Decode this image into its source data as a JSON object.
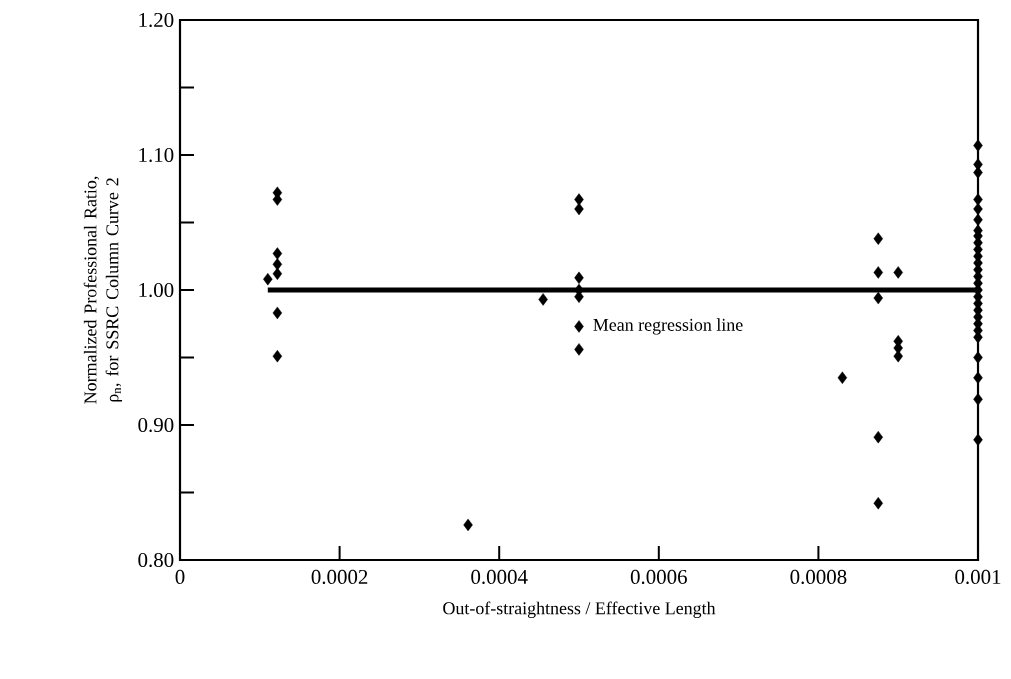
{
  "chart_data": {
    "type": "scatter",
    "xlabel": "Out-of-straightness / Effective Length",
    "ylabel": "Normalized Professional Ratio, ρ$_{n}$, for SSRC Column Curve 2",
    "xlim": [
      0,
      0.001
    ],
    "ylim": [
      0.8,
      1.2
    ],
    "xticks": [
      0,
      0.0002,
      0.0004,
      0.0006,
      0.0008,
      0.001
    ],
    "yticks": [
      {
        "value": 0.8,
        "label": "0.80"
      },
      {
        "value": 0.85,
        "label": null
      },
      {
        "value": 0.9,
        "label": "0.90"
      },
      {
        "value": 0.95,
        "label": null
      },
      {
        "value": 1.0,
        "label": "1.00"
      },
      {
        "value": 1.05,
        "label": null
      },
      {
        "value": 1.1,
        "label": "1.10"
      },
      {
        "value": 1.15,
        "label": null
      },
      {
        "value": 1.2,
        "label": "1.20"
      }
    ],
    "series": [
      {
        "type": "scatter",
        "color": "#000000",
        "marker": "diamond",
        "x": [
          0.00011,
          0.000122,
          0.000122,
          0.000122,
          0.000122,
          0.000122,
          0.000122,
          0.000122,
          0.000361,
          0.000455,
          0.0005,
          0.0005,
          0.0005,
          0.0005,
          0.0005,
          0.0005,
          0.0005,
          0.00083,
          0.000875,
          0.000875,
          0.000875,
          0.000875,
          0.000875,
          0.0009,
          0.0009,
          0.0009,
          0.0009,
          0.001,
          0.001,
          0.001,
          0.001,
          0.001,
          0.001,
          0.001,
          0.001,
          0.001,
          0.001,
          0.001,
          0.001,
          0.001,
          0.001,
          0.001,
          0.001,
          0.001,
          0.001,
          0.001,
          0.001,
          0.001,
          0.001,
          0.001,
          0.001,
          0.001,
          0.001,
          0.001
        ],
        "values": [
          1.008,
          1.072,
          1.067,
          1.027,
          1.019,
          1.012,
          0.983,
          0.951,
          0.826,
          0.993,
          1.067,
          1.06,
          1.009,
          1.0,
          0.995,
          0.973,
          0.956,
          0.935,
          1.038,
          1.013,
          0.994,
          0.891,
          0.842,
          1.013,
          0.962,
          0.957,
          0.951,
          1.107,
          1.093,
          1.087,
          1.067,
          1.06,
          1.052,
          1.044,
          1.04,
          1.035,
          1.03,
          1.025,
          1.02,
          1.015,
          1.01,
          1.005,
          1.0,
          0.995,
          0.99,
          0.985,
          0.98,
          0.975,
          0.97,
          0.965,
          0.95,
          0.935,
          0.919,
          0.889
        ]
      },
      {
        "type": "line",
        "color": "#000000",
        "marker": "none",
        "line_style": "solid",
        "x": [
          0.00011,
          0.001
        ],
        "values": [
          1.0,
          1.0
        ]
      }
    ],
    "annotations": [
      {
        "text": "Mean regression line",
        "x": 0.00051,
        "y": 0.973
      }
    ]
  }
}
